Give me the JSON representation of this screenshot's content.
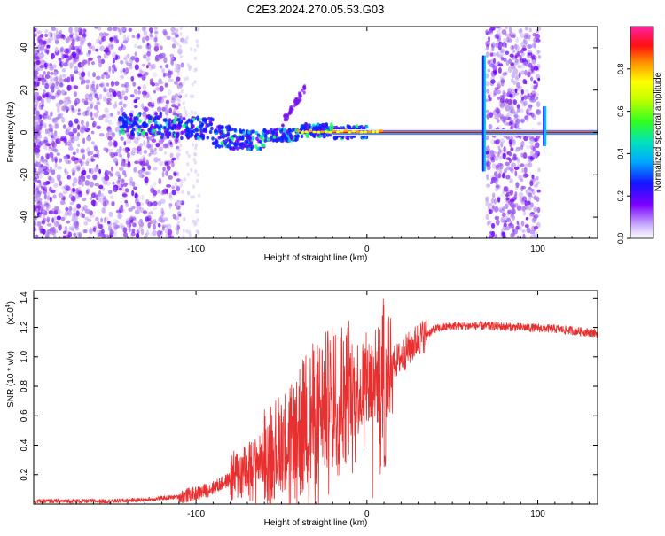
{
  "title": "C2E3.2024.270.05.53.G03",
  "chart_data": [
    {
      "type": "heatmap",
      "name": "spectrogram",
      "xlabel": "Height of straight line (km)",
      "ylabel": "Frequency (Hz)",
      "xlim": [
        -195,
        135
      ],
      "ylim": [
        -50,
        50
      ],
      "xticks": [
        -100,
        0,
        100
      ],
      "yticks": [
        -40,
        -20,
        0,
        20,
        40
      ],
      "colorbar": {
        "label": "Normalized spectral amplitude",
        "range": [
          0,
          1
        ],
        "ticks": [
          0.0,
          0.2,
          0.4,
          0.6,
          0.8
        ],
        "tick_labels": [
          "0.0",
          "0.2",
          "0.4",
          "0.6",
          "0.8"
        ]
      },
      "features": [
        {
          "desc": "carrier line",
          "x_start": -140,
          "x_end": 135,
          "freq": 0
        },
        {
          "desc": "noise block",
          "x_start": -195,
          "x_end": -108
        },
        {
          "desc": "noise block",
          "x_start": 70,
          "x_end": 101
        }
      ],
      "colors": [
        "#e020a0",
        "#ff0000",
        "#ffa000",
        "#ffff00",
        "#00ff00",
        "#00c8c8",
        "#00b4ff",
        "#0000ff",
        "#8000ff",
        "#e8e0ff"
      ]
    },
    {
      "type": "line",
      "name": "snr",
      "xlabel": "Height of straight line (km)",
      "ylabel": "SNR (10 * v/v)",
      "y_multiplier": "(x10",
      "y_multiplier_exp": "4",
      "y_multiplier_close": ")",
      "xlim": [
        -195,
        135
      ],
      "ylim": [
        0,
        1.45
      ],
      "xticks": [
        -100,
        0,
        100
      ],
      "yticks": [
        0.2,
        0.4,
        0.6,
        0.8,
        1.0,
        1.2,
        1.4
      ],
      "series_color": "#e83030",
      "envelope": [
        [
          -195,
          0.02
        ],
        [
          -150,
          0.02
        ],
        [
          -130,
          0.03
        ],
        [
          -110,
          0.05
        ],
        [
          -100,
          0.07
        ],
        [
          -90,
          0.11
        ],
        [
          -80,
          0.17
        ],
        [
          -70,
          0.24
        ],
        [
          -60,
          0.32
        ],
        [
          -50,
          0.42
        ],
        [
          -40,
          0.5
        ],
        [
          -30,
          0.62
        ],
        [
          -20,
          0.72
        ],
        [
          -10,
          0.78
        ],
        [
          0,
          0.82
        ],
        [
          5,
          0.86
        ],
        [
          10,
          0.9
        ],
        [
          20,
          1.0
        ],
        [
          30,
          1.12
        ],
        [
          40,
          1.19
        ],
        [
          50,
          1.21
        ],
        [
          70,
          1.21
        ],
        [
          90,
          1.2
        ],
        [
          110,
          1.19
        ],
        [
          135,
          1.16
        ]
      ]
    }
  ]
}
